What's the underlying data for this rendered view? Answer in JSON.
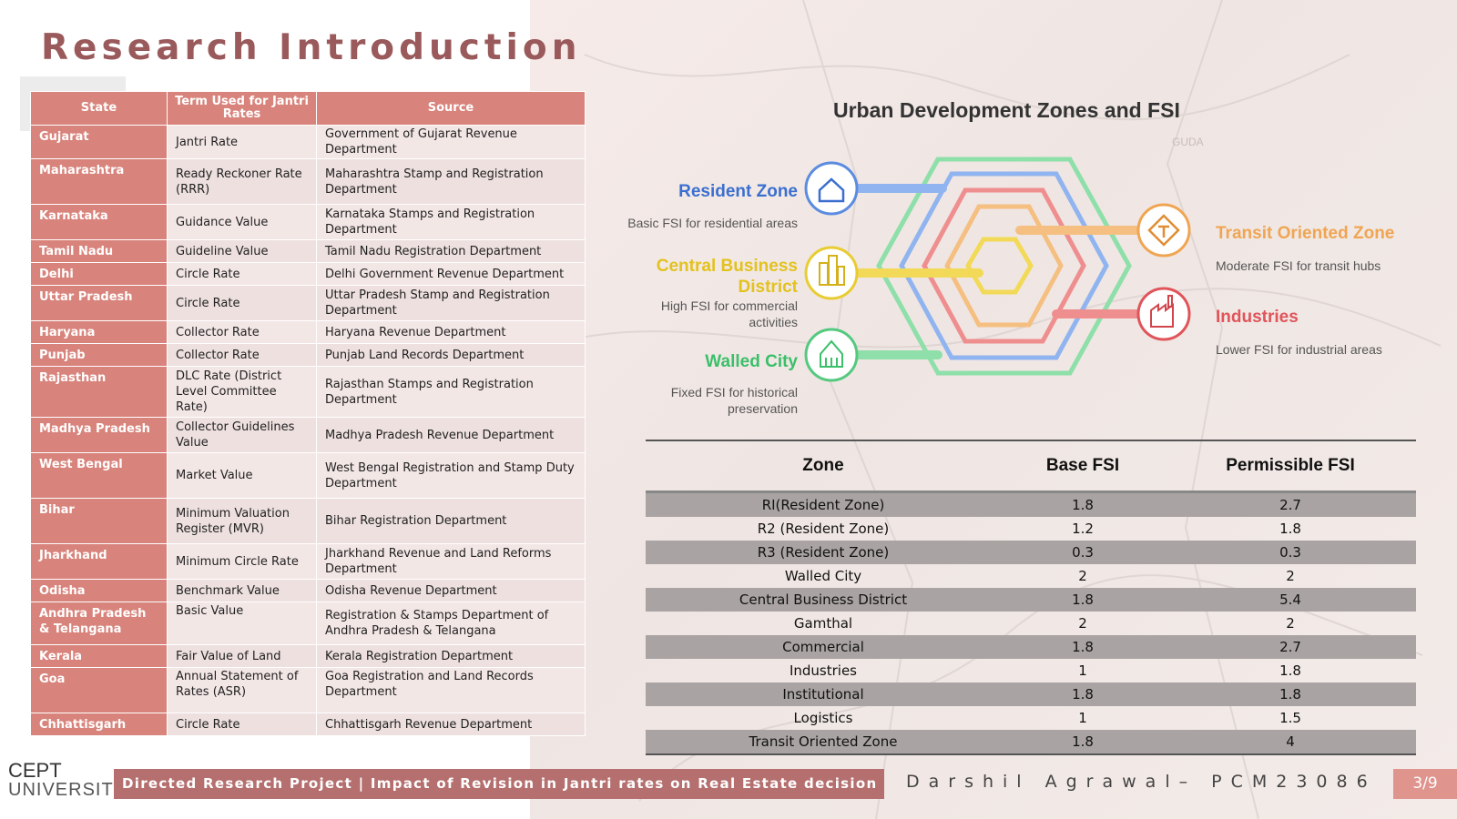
{
  "page": {
    "title": "Research Introduction",
    "page_number": "3/9"
  },
  "states_table": {
    "headers": [
      "State",
      "Term Used for Jantri Rates",
      "Source"
    ],
    "rows": [
      {
        "state": "Gujarat",
        "term": "Jantri Rate",
        "source": "Government of Gujarat Revenue Department"
      },
      {
        "state": "Maharashtra",
        "term": "Ready Reckoner Rate (RRR)",
        "source": "Maharashtra Stamp and Registration Department"
      },
      {
        "state": "Karnataka",
        "term": "Guidance Value",
        "source": "Karnataka Stamps and Registration Department"
      },
      {
        "state": "Tamil Nadu",
        "term": "Guideline Value",
        "source": "Tamil Nadu Registration Department"
      },
      {
        "state": "Delhi",
        "term": "Circle Rate",
        "source": "Delhi Government Revenue Department"
      },
      {
        "state": "Uttar Pradesh",
        "term": "Circle Rate",
        "source": "Uttar Pradesh Stamp and Registration Department"
      },
      {
        "state": "Haryana",
        "term": "Collector Rate",
        "source": "Haryana Revenue Department"
      },
      {
        "state": "Punjab",
        "term": "Collector Rate",
        "source": "Punjab Land Records Department"
      },
      {
        "state": "Rajasthan",
        "term": "DLC Rate (District Level Committee Rate)",
        "source": "Rajasthan Stamps and Registration Department"
      },
      {
        "state": "Madhya Pradesh",
        "term": "Collector Guidelines Value",
        "source": "Madhya Pradesh Revenue Department"
      },
      {
        "state": "West Bengal",
        "term": "Market Value",
        "source": "West Bengal Registration and Stamp Duty Department"
      },
      {
        "state": "Bihar",
        "term": "Minimum Valuation Register (MVR)",
        "source": "Bihar Registration Department"
      },
      {
        "state": "Jharkhand",
        "term": "Minimum Circle Rate",
        "source": "Jharkhand Revenue and Land Reforms Department"
      },
      {
        "state": "Odisha",
        "term": "Benchmark Value",
        "source": "Odisha Revenue Department"
      },
      {
        "state": "Andhra Pradesh & Telangana",
        "term": "Basic Value",
        "source": "Registration & Stamps Department of Andhra Pradesh & Telangana"
      },
      {
        "state": "Kerala",
        "term": "Fair Value of Land",
        "source": "Kerala Registration Department"
      },
      {
        "state": "Goa",
        "term": "Annual Statement of Rates (ASR)",
        "source": "Goa Registration and Land Records Department"
      },
      {
        "state": "Chhattisgarh",
        "term": "Circle Rate",
        "source": "Chhattisgarh Revenue Department"
      }
    ]
  },
  "diagram": {
    "title": "Urban Development Zones and FSI",
    "zones": [
      {
        "name": "Resident Zone",
        "desc": "Basic FSI for residential areas",
        "color": "#3b6fcf",
        "icon": "house-icon"
      },
      {
        "name": "Central Business District",
        "desc": "High FSI for commercial activities",
        "color": "#e3c21e",
        "icon": "buildings-icon"
      },
      {
        "name": "Walled City",
        "desc": "Fixed FSI for historical preservation",
        "color": "#3bbf6a",
        "icon": "temple-icon"
      },
      {
        "name": "Transit Oriented Zone",
        "desc": "Moderate FSI for transit hubs",
        "color": "#f0a552",
        "icon": "signpost-icon"
      },
      {
        "name": "Industries",
        "desc": "Lower FSI for industrial areas",
        "color": "#e0545a",
        "icon": "factory-icon"
      }
    ],
    "map_label": "GUDA"
  },
  "fsi_table": {
    "headers": [
      "Zone",
      "Base FSI",
      "Permissible FSI"
    ],
    "rows": [
      {
        "zone": "RI(Resident Zone)",
        "base": "1.8",
        "permissible": "2.7"
      },
      {
        "zone": "R2 (Resident Zone)",
        "base": "1.2",
        "permissible": "1.8"
      },
      {
        "zone": "R3 (Resident Zone)",
        "base": "0.3",
        "permissible": "0.3"
      },
      {
        "zone": "Walled City",
        "base": "2",
        "permissible": "2"
      },
      {
        "zone": "Central Business District",
        "base": "1.8",
        "permissible": "5.4"
      },
      {
        "zone": "Gamthal",
        "base": "2",
        "permissible": "2"
      },
      {
        "zone": "Commercial",
        "base": "1.8",
        "permissible": "2.7"
      },
      {
        "zone": "Industries",
        "base": "1",
        "permissible": "1.8"
      },
      {
        "zone": "Institutional",
        "base": "1.8",
        "permissible": "1.8"
      },
      {
        "zone": "Logistics",
        "base": "1",
        "permissible": "1.5"
      },
      {
        "zone": "Transit Oriented Zone",
        "base": "1.8",
        "permissible": "4"
      }
    ]
  },
  "footer": {
    "logo_line1": "CEPT",
    "logo_line2": "UNIVERSITY",
    "project": "Directed Research Project | Impact of Revision in Jantri rates on Real Estate decision",
    "author": "Darshil Agrawal– PCM23086"
  }
}
